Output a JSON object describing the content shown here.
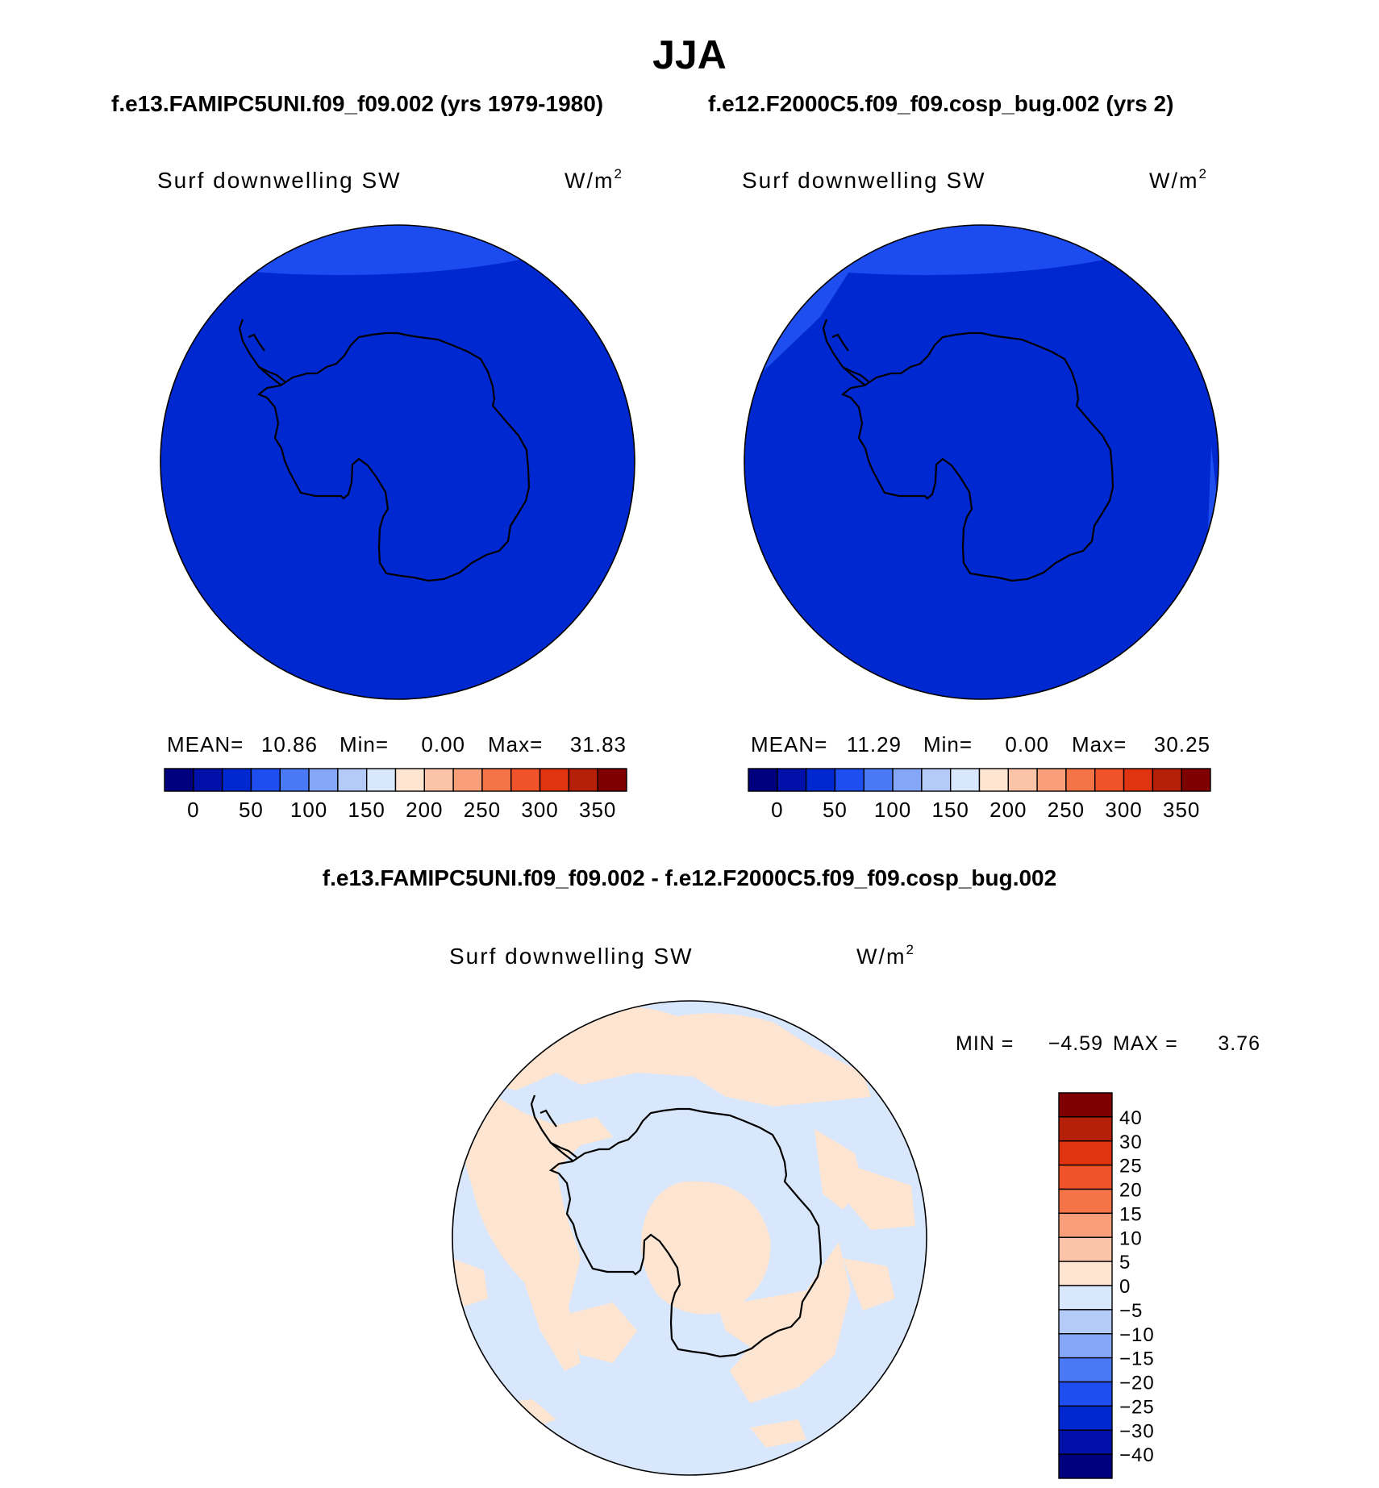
{
  "figure": {
    "title": "JJA",
    "top_header_left": "f.e13.FAMIPC5UNI.f09_f09.002 (yrs 1979-1980)",
    "top_header_right": "f.e12.F2000C5.f09_f09.cosp_bug.002 (yrs 2)",
    "diff_header": "f.e13.FAMIPC5UNI.f09_f09.002 - f.e12.F2000C5.f09_f09.cosp_bug.002"
  },
  "panels": [
    {
      "variable": "Surf downwelling SW",
      "units": "W/m",
      "units_sup": "2",
      "stats": {
        "mean_label": "MEAN=",
        "mean": "10.86",
        "min_label": "Min=",
        "min": "0.00",
        "max_label": "Max=",
        "max": "31.83"
      }
    },
    {
      "variable": "Surf downwelling SW",
      "units": "W/m",
      "units_sup": "2",
      "stats": {
        "mean_label": "MEAN=",
        "mean": "11.29",
        "min_label": "Min=",
        "min": "0.00",
        "max_label": "Max=",
        "max": "30.25"
      }
    }
  ],
  "diff_panel": {
    "variable": "Surf downwelling SW",
    "units": "W/m",
    "units_sup": "2",
    "stats": {
      "min_label": "MIN =",
      "min": "−4.59",
      "max_label": "MAX =",
      "max": "3.76"
    }
  },
  "colorbar_abs": {
    "colors": [
      "#00007f",
      "#0010a8",
      "#0028d0",
      "#1e4ef0",
      "#4a79f5",
      "#85a6f7",
      "#b5cbf7",
      "#d8e7fb",
      "#fde5d2",
      "#fbc3a8",
      "#f89e78",
      "#f47448",
      "#f0522a",
      "#e03410",
      "#b61f08",
      "#7f0000"
    ],
    "labels": [
      "0",
      "50",
      "100",
      "150",
      "200",
      "250",
      "300",
      "350"
    ]
  },
  "colorbar_diff": {
    "colors_top_to_bottom": [
      "#7f0000",
      "#b61f08",
      "#e03410",
      "#f0522a",
      "#f47448",
      "#f89e78",
      "#fbc3a8",
      "#fde5d2",
      "#d8e7fb",
      "#b5cbf7",
      "#85a6f7",
      "#4a79f5",
      "#1e4ef0",
      "#0028d0",
      "#0010a8",
      "#00007f"
    ],
    "labels_top_to_bottom": [
      "40",
      "30",
      "25",
      "20",
      "15",
      "10",
      "5",
      "0",
      "−5",
      "−10",
      "−15",
      "−20",
      "−25",
      "−30",
      "−40"
    ]
  },
  "map_colors": {
    "abs_background": "#0028d0",
    "abs_light": "#1e4ef0",
    "diff_negative": "#d8e7fb",
    "diff_positive": "#fde5d2",
    "coastline": "#000000"
  }
}
